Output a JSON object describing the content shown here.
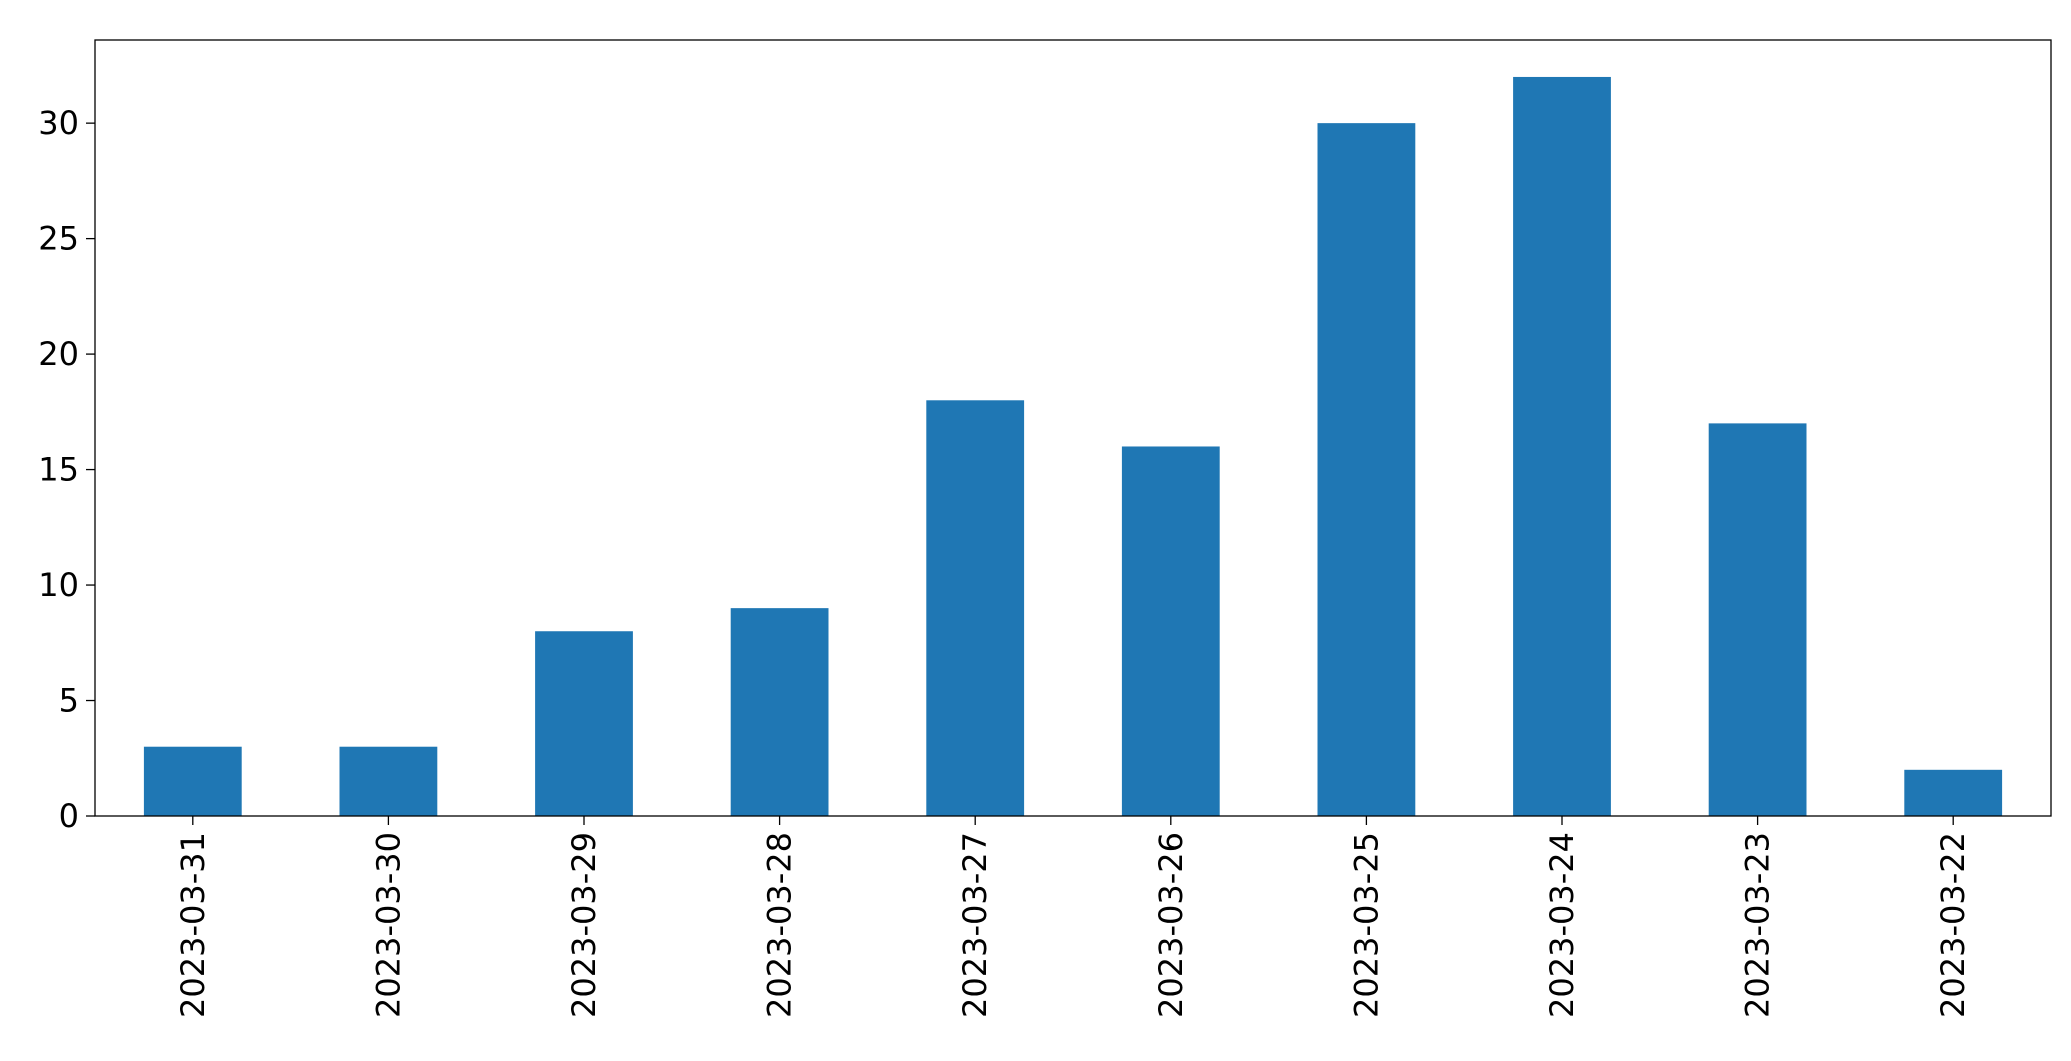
{
  "chart_data": {
    "type": "bar",
    "categories": [
      "2023-03-31",
      "2023-03-30",
      "2023-03-29",
      "2023-03-28",
      "2023-03-27",
      "2023-03-26",
      "2023-03-25",
      "2023-03-24",
      "2023-03-23",
      "2023-03-22"
    ],
    "values": [
      3,
      3,
      8,
      9,
      18,
      16,
      30,
      32,
      17,
      2
    ],
    "color": "#1f77b4",
    "ylim": [
      0,
      33.6
    ],
    "yticks": [
      0,
      5,
      10,
      15,
      20,
      25,
      30
    ],
    "grid": false
  }
}
